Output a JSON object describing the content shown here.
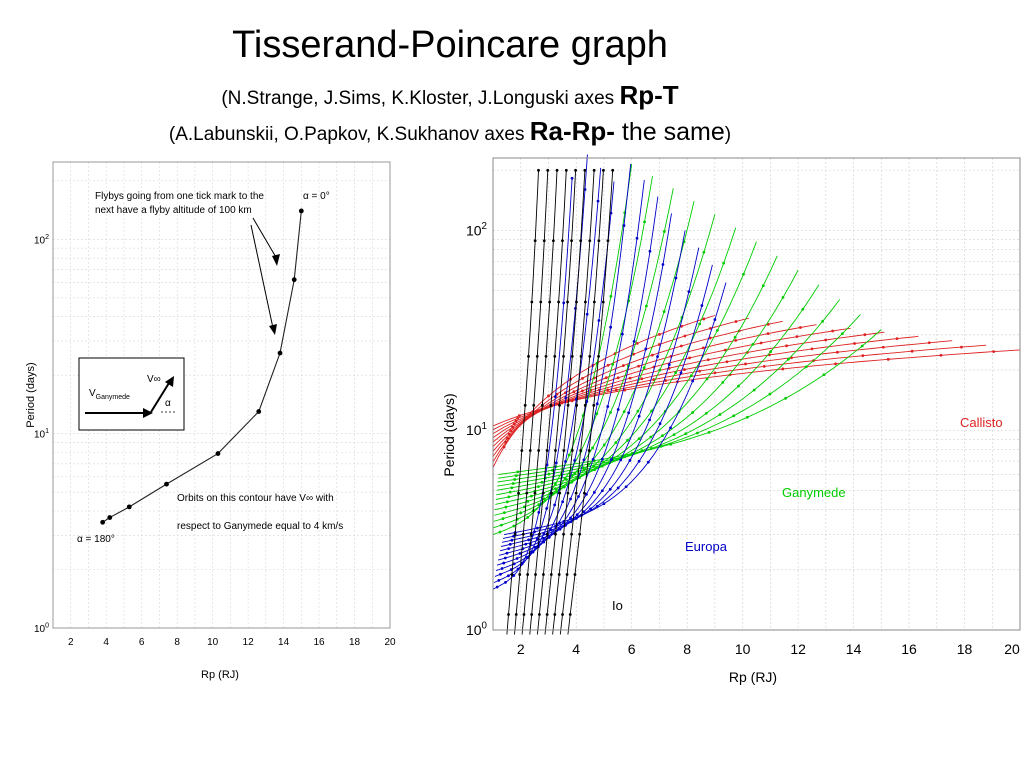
{
  "slide": {
    "title": "Tisserand-Poincare graph",
    "subtitle1_prefix": "(N.Strange, J.Sims, K.Kloster, J.Longuski axes ",
    "subtitle1_bold": "Rp-T",
    "subtitle2_prefix": "(A.Labunskii, O.Papkov, K.Sukhanov axes ",
    "subtitle2_bold": "Ra-Rp-",
    "subtitle2_suffix": " the same",
    "subtitle2_close": ")"
  },
  "chart_data": [
    {
      "type": "line",
      "xlabel": "Rp (RJ)",
      "ylabel": "Period (days)",
      "xlim": [
        1,
        20
      ],
      "ylim": [
        1,
        250
      ],
      "yscale": "log",
      "grid": true,
      "x_ticks": [
        "2",
        "4",
        "6",
        "8",
        "10",
        "12",
        "14",
        "16",
        "18",
        "20"
      ],
      "y_ticks": [
        "10^0",
        "10^1",
        "10^2"
      ],
      "series": [
        {
          "points": [
            [
              3.8,
              3.5
            ],
            [
              4.2,
              3.7
            ],
            [
              5.3,
              4.2
            ],
            [
              7.4,
              5.5
            ],
            [
              10.3,
              7.9
            ],
            [
              12.6,
              13.0
            ],
            [
              13.8,
              26.0
            ],
            [
              14.6,
              62.0
            ],
            [
              15.0,
              140.0
            ]
          ]
        }
      ],
      "annotations": {
        "top_label": "α = 0°",
        "bottom_label": "α = 180°",
        "note_ticks": [
          "Flybys going from one tick mark to the",
          "next have a flyby altitude of 100 km"
        ],
        "note_contour": [
          "Orbits on this contour have V∞ with",
          "respect to Ganymede equal to 4 km/s"
        ],
        "inset_v_label": "V",
        "inset_v_sub": "Ganymede",
        "inset_vinf_label": "V∞",
        "inset_alpha": "α"
      }
    },
    {
      "type": "line",
      "xlabel": "Rp (RJ)",
      "ylabel": "Period (days)",
      "xlim": [
        1,
        20
      ],
      "ylim": [
        1,
        230
      ],
      "yscale": "log",
      "grid": true,
      "x_ticks": [
        "2",
        "4",
        "6",
        "8",
        "10",
        "12",
        "14",
        "16",
        "18",
        "20"
      ],
      "y_ticks": [
        "10^0",
        "10^1",
        "10^2"
      ],
      "families": [
        {
          "name": "Io",
          "color": "#000000",
          "rp_min": 1.5,
          "rp_max": 5.9,
          "curves": 9
        },
        {
          "name": "Europa",
          "color": "#0000c8",
          "rp_min": 1.0,
          "rp_max": 9.4,
          "curves": 12
        },
        {
          "name": "Ganymede",
          "color": "#00cc00",
          "rp_min": 1.0,
          "rp_max": 14.9,
          "curves": 13
        },
        {
          "name": "Callisto",
          "color": "#dd2222",
          "rp_min": 1.0,
          "rp_max": 20.0,
          "curves": 10
        }
      ]
    }
  ],
  "colors": {
    "io": "#000000",
    "europa": "#0000c8",
    "ganymede": "#00cc00",
    "callisto": "#dd2222",
    "grid": "#c8c8c8"
  }
}
